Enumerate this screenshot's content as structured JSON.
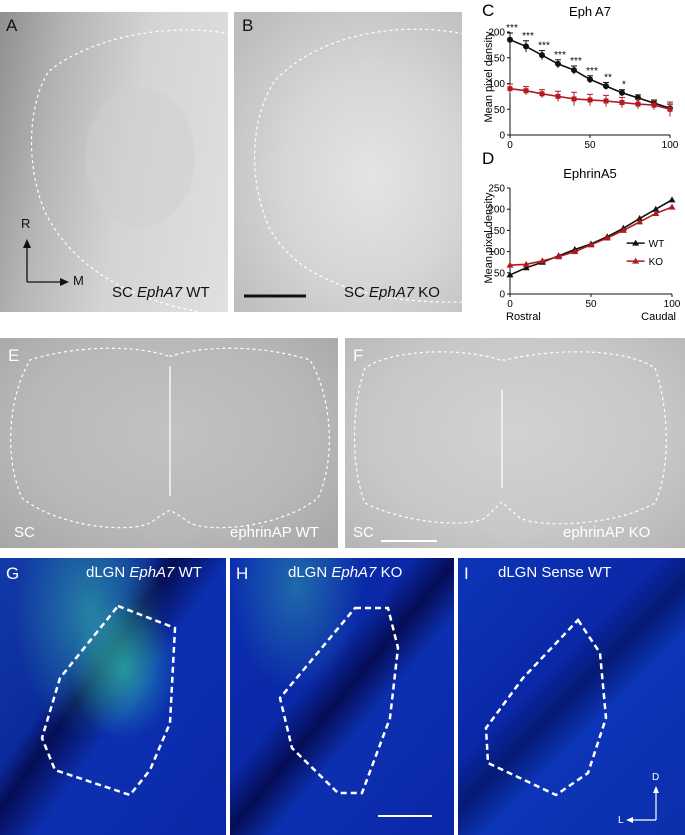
{
  "panels": {
    "A": {
      "letter": "A",
      "caption_prefix": "SC ",
      "caption_gene": "EphA7",
      "caption_suffix": " WT",
      "axis_r": "R",
      "axis_m": "M"
    },
    "B": {
      "letter": "B",
      "caption_prefix": "SC ",
      "caption_gene": "EphA7",
      "caption_suffix": " KO"
    },
    "E": {
      "letter": "E",
      "left": "SC",
      "right": "ephrinAP WT"
    },
    "F": {
      "letter": "F",
      "left": "SC",
      "right": "ephrinAP KO"
    },
    "G": {
      "letter": "G",
      "caption_prefix": "dLGN ",
      "caption_gene": "EphA7",
      "caption_suffix": " WT"
    },
    "H": {
      "letter": "H",
      "caption_prefix": "dLGN ",
      "caption_gene": "EphA7",
      "caption_suffix": " KO"
    },
    "I": {
      "letter": "I",
      "caption": "dLGN Sense WT",
      "axis_d": "D",
      "axis_l": "L"
    }
  },
  "chart_data": [
    {
      "panel": "C",
      "type": "line",
      "title": "Eph A7",
      "ylabel": "Mean pixel density",
      "xlabel": "",
      "x": [
        0,
        10,
        20,
        30,
        40,
        50,
        60,
        70,
        80,
        90,
        100
      ],
      "ylim": [
        0,
        200
      ],
      "yticks": [
        0,
        50,
        100,
        150,
        200
      ],
      "xticks": [
        0,
        50,
        100
      ],
      "series": [
        {
          "name": "WT",
          "color": "#111111",
          "marker": "circle",
          "values": [
            185,
            172,
            155,
            138,
            126,
            108,
            95,
            82,
            72,
            62,
            52
          ],
          "err": [
            13,
            11,
            9,
            8,
            8,
            7,
            7,
            6,
            6,
            6,
            8
          ]
        },
        {
          "name": "KO",
          "color": "#b01a20",
          "marker": "square",
          "values": [
            90,
            86,
            80,
            75,
            70,
            68,
            66,
            63,
            60,
            58,
            50
          ],
          "err": [
            9,
            8,
            8,
            10,
            13,
            11,
            11,
            10,
            9,
            9,
            14
          ]
        }
      ],
      "annotations": [
        "***",
        "***",
        "***",
        "***",
        "***",
        "***",
        "**",
        "*"
      ]
    },
    {
      "panel": "D",
      "type": "line",
      "title": "EphrinA5",
      "ylabel": "Mean pixel density",
      "xlabel_left": "Rostral",
      "xlabel_right": "Caudal",
      "x": [
        0,
        10,
        20,
        30,
        40,
        50,
        60,
        70,
        80,
        90,
        100
      ],
      "ylim": [
        0,
        250
      ],
      "yticks": [
        0,
        50,
        100,
        150,
        200,
        250
      ],
      "xticks": [
        0,
        50,
        100
      ],
      "legend": "right",
      "series": [
        {
          "name": "WT",
          "color": "#111111",
          "marker": "triangle",
          "values": [
            45,
            62,
            75,
            90,
            105,
            118,
            135,
            155,
            178,
            200,
            222
          ]
        },
        {
          "name": "KO",
          "color": "#b01a20",
          "marker": "triangle",
          "values": [
            68,
            70,
            78,
            88,
            100,
            116,
            132,
            150,
            170,
            190,
            205
          ]
        }
      ]
    }
  ]
}
